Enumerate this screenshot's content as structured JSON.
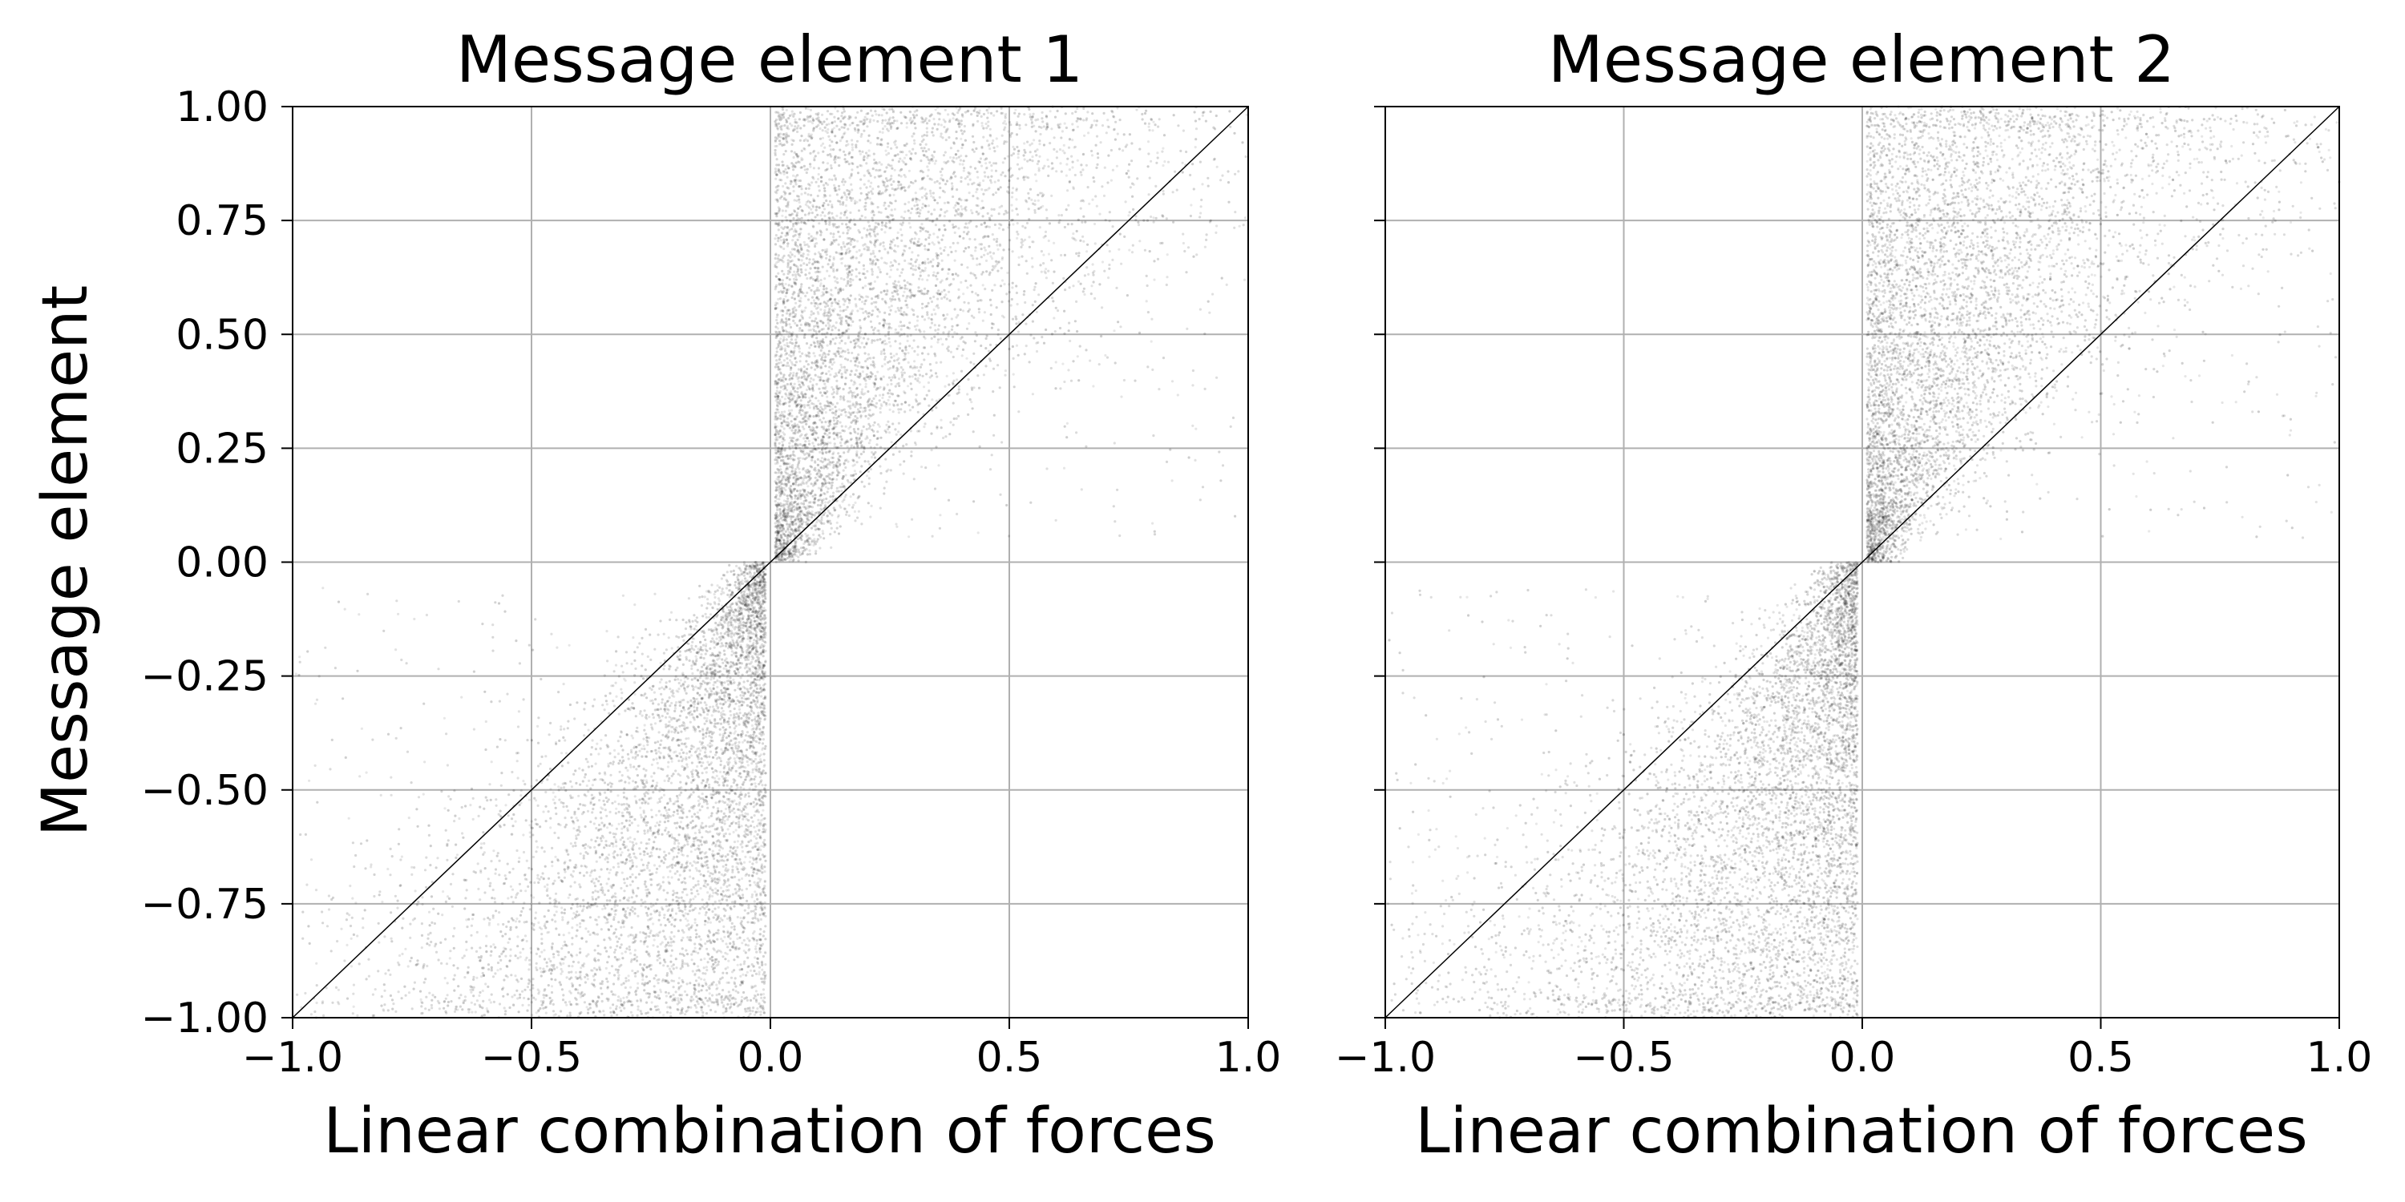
{
  "figure": {
    "ylabel": "Message element"
  },
  "chart_data": [
    {
      "type": "scatter",
      "title": "Message element 1",
      "xlabel": "Linear combination of forces",
      "ylabel": "Message element",
      "xlim": [
        -1.0,
        1.0
      ],
      "ylim": [
        -1.0,
        1.0
      ],
      "xticks": [
        "−1.0",
        "−0.5",
        "0.0",
        "0.5",
        "1.0"
      ],
      "xtick_values": [
        -1.0,
        -0.5,
        0.0,
        0.5,
        1.0
      ],
      "yticks": [
        "−1.00",
        "−0.75",
        "−0.50",
        "−0.25",
        "0.00",
        "0.25",
        "0.50",
        "0.75",
        "1.00"
      ],
      "ytick_values": [
        -1.0,
        -0.75,
        -0.5,
        -0.25,
        0.0,
        0.25,
        0.5,
        0.75,
        1.0
      ],
      "grid": true,
      "show_ytick_labels": true,
      "reference_line": {
        "from": [
          -1.0,
          -1.0
        ],
        "to": [
          1.0,
          1.0
        ]
      },
      "point_color": "#000000",
      "distribution": {
        "description_points": [
          {
            "x": 0.0,
            "y": 0.0
          },
          {
            "x": 0.05,
            "y": 0.3
          },
          {
            "x": -0.05,
            "y": -0.3
          },
          {
            "x": 0.1,
            "y": 0.75
          },
          {
            "x": -0.1,
            "y": -0.75
          },
          {
            "x": 0.5,
            "y": 0.5
          },
          {
            "x": -0.5,
            "y": -0.5
          }
        ]
      }
    },
    {
      "type": "scatter",
      "title": "Message element 2",
      "xlabel": "Linear combination of forces",
      "ylabel": "",
      "xlim": [
        -1.0,
        1.0
      ],
      "ylim": [
        -1.0,
        1.0
      ],
      "xticks": [
        "−1.0",
        "−0.5",
        "0.0",
        "0.5",
        "1.0"
      ],
      "xtick_values": [
        -1.0,
        -0.5,
        0.0,
        0.5,
        1.0
      ],
      "yticks": [],
      "ytick_values": [
        -1.0,
        -0.75,
        -0.5,
        -0.25,
        0.0,
        0.25,
        0.5,
        0.75,
        1.0
      ],
      "grid": true,
      "show_ytick_labels": false,
      "reference_line": {
        "from": [
          -1.0,
          -1.0
        ],
        "to": [
          1.0,
          1.0
        ]
      },
      "point_color": "#000000",
      "distribution": {
        "description_points": [
          {
            "x": 0.0,
            "y": 0.0
          },
          {
            "x": 0.05,
            "y": 0.3
          },
          {
            "x": -0.05,
            "y": -0.3
          },
          {
            "x": 0.1,
            "y": 0.75
          },
          {
            "x": -0.1,
            "y": -0.75
          },
          {
            "x": 0.5,
            "y": 0.5
          },
          {
            "x": -0.5,
            "y": -0.5
          }
        ]
      }
    }
  ]
}
